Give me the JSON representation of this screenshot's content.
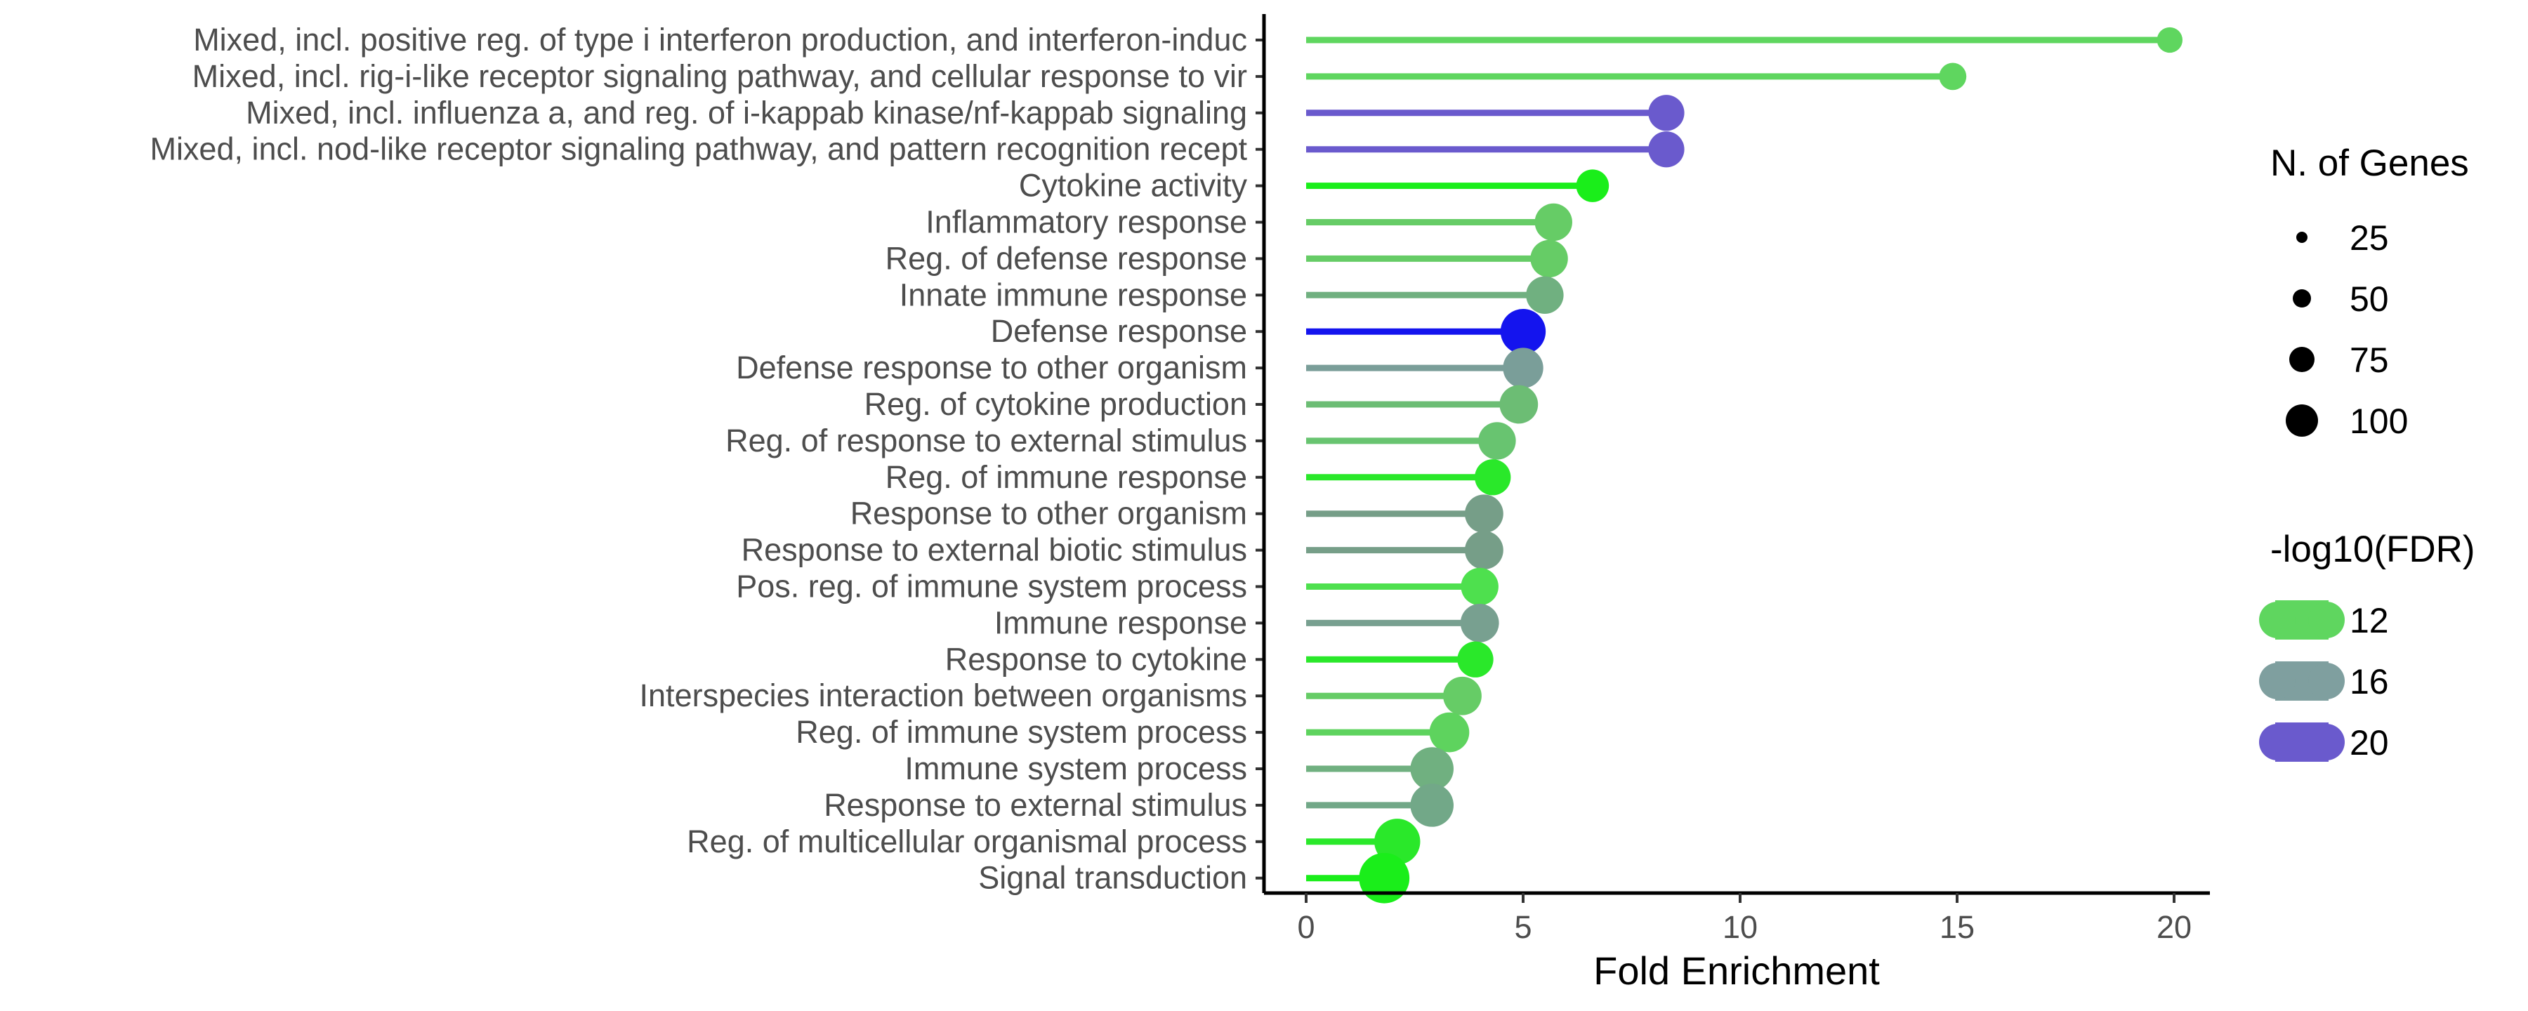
{
  "chart_data": {
    "type": "lollipop",
    "categories": [
      "Mixed, incl. positive reg. of type i interferon production, and interferon-induc",
      "Mixed, incl. rig-i-like receptor signaling pathway, and cellular response to vir",
      "Mixed, incl. influenza a, and reg. of i-kappab kinase/nf-kappab signaling",
      "Mixed, incl. nod-like receptor signaling pathway, and pattern recognition recept",
      "Cytokine activity",
      "Inflammatory response",
      "Reg. of defense response",
      "Innate immune response",
      "Defense response",
      "Defense response to other organism",
      "Reg. of cytokine production",
      "Reg. of response to external stimulus",
      "Reg. of immune response",
      "Response to other organism",
      "Response to external biotic stimulus",
      "Pos. reg. of immune system process",
      "Immune response",
      "Response to cytokine",
      "Interspecies interaction between organisms",
      "Reg. of immune system process",
      "Immune system process",
      "Response to external stimulus",
      "Reg. of multicellular organismal process",
      "Signal transduction"
    ],
    "fold_enrichment": [
      19.9,
      14.9,
      8.3,
      8.3,
      6.6,
      5.7,
      5.6,
      5.5,
      5.0,
      5.0,
      4.9,
      4.4,
      4.3,
      4.1,
      4.1,
      4.0,
      4.0,
      3.9,
      3.6,
      3.3,
      2.9,
      2.9,
      2.1,
      1.8
    ],
    "n_genes": [
      8,
      10,
      24,
      24,
      18,
      27,
      27,
      27,
      45,
      33,
      29,
      27,
      24,
      29,
      29,
      27,
      29,
      24,
      29,
      32,
      40,
      40,
      47,
      60
    ],
    "neg_log10_fdr": [
      12.0,
      12.0,
      20.5,
      20.5,
      9.5,
      12.0,
      12.0,
      14.5,
      25.0,
      16.0,
      13.5,
      12.5,
      10.0,
      15.0,
      15.0,
      11.0,
      15.5,
      10.0,
      12.0,
      11.5,
      14.0,
      14.5,
      10.0,
      10.0
    ],
    "colors": [
      "#5fd65f",
      "#5fd65f",
      "#6a5acd",
      "#6a5acd",
      "#1aee1a",
      "#66cc66",
      "#66cc66",
      "#70b080",
      "#1414ee",
      "#7a9e99",
      "#6cbd74",
      "#68c470",
      "#2ae82a",
      "#769e88",
      "#769e88",
      "#4ee04e",
      "#78a090",
      "#2ae82a",
      "#66cc66",
      "#5ed35e",
      "#70b080",
      "#72a888",
      "#2ae82a",
      "#1aee1a"
    ],
    "xlabel": "Fold Enrichment",
    "ylabel": "",
    "xlim": [
      -1,
      21
    ],
    "xticks": [
      0,
      5,
      10,
      15,
      20
    ],
    "legend_size": {
      "title": "N. of Genes",
      "values": [
        25,
        50,
        75,
        100
      ]
    },
    "legend_color": {
      "title": "-log10(FDR)",
      "values": [
        12,
        16,
        20
      ],
      "colors": [
        "#5fd65f",
        "#7f9f9f",
        "#6a5acd"
      ]
    },
    "grid": false,
    "legend_placement": "right"
  }
}
